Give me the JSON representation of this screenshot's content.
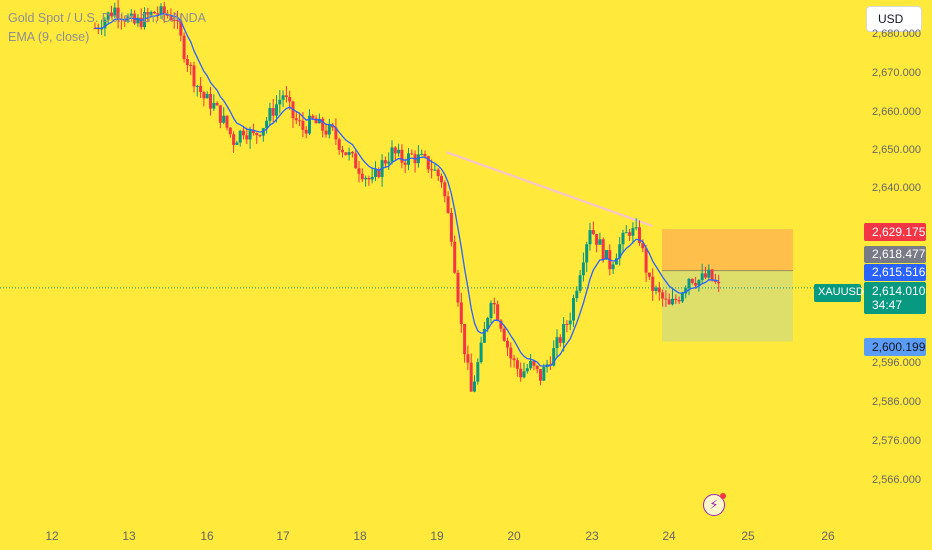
{
  "legend": {
    "title": "Gold Spot / U.S. Dollar, 1h, OANDA",
    "indicator": "EMA (9, close)"
  },
  "currency_button": "USD",
  "y_axis_ticks": [
    "2,680.000",
    "2,670.000",
    "2,660.000",
    "2,650.000",
    "2,640.000",
    "2,596.000",
    "2,586.000",
    "2,576.000",
    "2,566.000"
  ],
  "x_axis_ticks": [
    "12",
    "13",
    "16",
    "17",
    "18",
    "19",
    "20",
    "23",
    "24",
    "25",
    "26"
  ],
  "price_badges": {
    "stop_loss": {
      "text": "2,629.175",
      "color": "#F23645"
    },
    "entry": {
      "text": "2,618.477",
      "color": "#787B86"
    },
    "ema": {
      "text": "2,615.516",
      "color": "#2962FF"
    },
    "last": {
      "text": "2,614.010",
      "color": "#089981"
    },
    "countdown": "34:47",
    "take_profit": {
      "text": "2,600.199",
      "color": "#5B9CF6"
    }
  },
  "symbol_tag": "XAUUSD",
  "alert_icon": "lightning-icon",
  "colors": {
    "background": "#FFE93A",
    "up": "#089981",
    "down": "#F23645",
    "ema": "#2962FF",
    "trendline": "#F7C6C9",
    "stop_zone": "#FFB74D",
    "target_zone": "#D9DE70"
  },
  "chart_data": {
    "type": "candlestick",
    "title": "Gold Spot / U.S. Dollar, 1h, OANDA",
    "indicator": {
      "name": "EMA (9, close)",
      "period": 9
    },
    "ylim": [
      2558,
      2689
    ],
    "x_tick_labels": [
      "12",
      "13",
      "16",
      "17",
      "18",
      "19",
      "20",
      "23",
      "24",
      "25",
      "26"
    ],
    "last_price": 2614.01,
    "ema_value": 2615.516,
    "close_path": [
      [
        0,
        2681
      ],
      [
        2,
        2686
      ],
      [
        4,
        2682
      ],
      [
        6,
        2685
      ],
      [
        8,
        2684
      ],
      [
        9,
        2675
      ],
      [
        10,
        2668
      ],
      [
        11,
        2663
      ],
      [
        12,
        2661
      ],
      [
        13,
        2657
      ],
      [
        14,
        2652
      ],
      [
        15,
        2655
      ],
      [
        16,
        2653
      ],
      [
        17,
        2656
      ],
      [
        18,
        2660
      ],
      [
        19,
        2664
      ],
      [
        20,
        2658
      ],
      [
        21,
        2655
      ],
      [
        22,
        2657
      ],
      [
        23,
        2655
      ],
      [
        24,
        2654
      ],
      [
        25,
        2650
      ],
      [
        26,
        2647
      ],
      [
        27,
        2644
      ],
      [
        28,
        2641
      ],
      [
        29,
        2646
      ],
      [
        30,
        2649
      ],
      [
        31,
        2647
      ],
      [
        32,
        2648
      ],
      [
        33,
        2647
      ],
      [
        34,
        2645
      ],
      [
        35,
        2642
      ],
      [
        36,
        2628
      ],
      [
        37,
        2604
      ],
      [
        38,
        2587
      ],
      [
        39,
        2598
      ],
      [
        40,
        2612
      ],
      [
        41,
        2605
      ],
      [
        42,
        2596
      ],
      [
        43,
        2592
      ],
      [
        44,
        2594
      ],
      [
        45,
        2591
      ],
      [
        46,
        2596
      ],
      [
        47,
        2601
      ],
      [
        48,
        2607
      ],
      [
        49,
        2619
      ],
      [
        50,
        2630
      ],
      [
        51,
        2625
      ],
      [
        52,
        2620
      ],
      [
        53,
        2625
      ],
      [
        54,
        2629
      ],
      [
        55,
        2627
      ],
      [
        56,
        2615
      ],
      [
        57,
        2612
      ],
      [
        58,
        2609
      ],
      [
        59,
        2612
      ],
      [
        60,
        2617
      ],
      [
        61,
        2616
      ],
      [
        62,
        2617
      ],
      [
        63,
        2614
      ]
    ],
    "trendline": {
      "from": [
        35.5,
        2649
      ],
      "to": [
        56.3,
        2630
      ]
    },
    "position": {
      "type": "short",
      "entry": 2618.477,
      "stop_loss": 2629.175,
      "take_profit": 2600.199
    }
  }
}
